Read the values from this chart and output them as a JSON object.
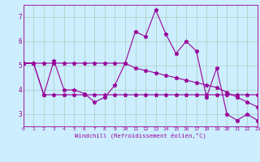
{
  "xlabel": "Windchill (Refroidissement éolien,°C)",
  "background_color": "#cceeff",
  "grid_color": "#aaccbb",
  "line_color": "#990099",
  "xlim": [
    0,
    23
  ],
  "ylim": [
    2.5,
    7.5
  ],
  "yticks": [
    3,
    4,
    5,
    6,
    7
  ],
  "xticks": [
    0,
    1,
    2,
    3,
    4,
    5,
    6,
    7,
    8,
    9,
    10,
    11,
    12,
    13,
    14,
    15,
    16,
    17,
    18,
    19,
    20,
    21,
    22,
    23
  ],
  "series1_x": [
    0,
    1,
    2,
    3,
    4,
    5,
    6,
    7,
    8,
    9,
    10,
    11,
    12,
    13,
    14,
    15,
    16,
    17,
    18,
    19,
    20,
    21,
    22,
    23
  ],
  "series1_y": [
    5.1,
    5.1,
    3.8,
    5.2,
    4.0,
    4.0,
    3.85,
    3.5,
    3.7,
    4.2,
    5.1,
    6.4,
    6.2,
    7.3,
    6.3,
    5.5,
    6.0,
    5.6,
    3.7,
    4.9,
    3.0,
    2.75,
    3.0,
    2.75
  ],
  "series2_x": [
    0,
    1,
    2,
    3,
    4,
    5,
    6,
    7,
    8,
    9,
    10,
    11,
    12,
    13,
    14,
    15,
    16,
    17,
    18,
    19,
    20,
    21,
    22,
    23
  ],
  "series2_y": [
    5.1,
    5.1,
    3.8,
    3.8,
    3.8,
    3.8,
    3.8,
    3.8,
    3.8,
    3.8,
    3.8,
    3.8,
    3.8,
    3.8,
    3.8,
    3.8,
    3.8,
    3.8,
    3.8,
    3.8,
    3.8,
    3.8,
    3.8,
    3.8
  ],
  "series3_x": [
    0,
    1,
    2,
    3,
    4,
    5,
    6,
    7,
    8,
    9,
    10,
    11,
    12,
    13,
    14,
    15,
    16,
    17,
    18,
    19,
    20,
    21,
    22,
    23
  ],
  "series3_y": [
    5.1,
    5.1,
    5.1,
    5.1,
    5.1,
    5.1,
    5.1,
    5.1,
    5.1,
    5.1,
    5.1,
    4.9,
    4.8,
    4.7,
    4.6,
    4.5,
    4.4,
    4.3,
    4.2,
    4.1,
    3.9,
    3.7,
    3.5,
    3.3
  ]
}
